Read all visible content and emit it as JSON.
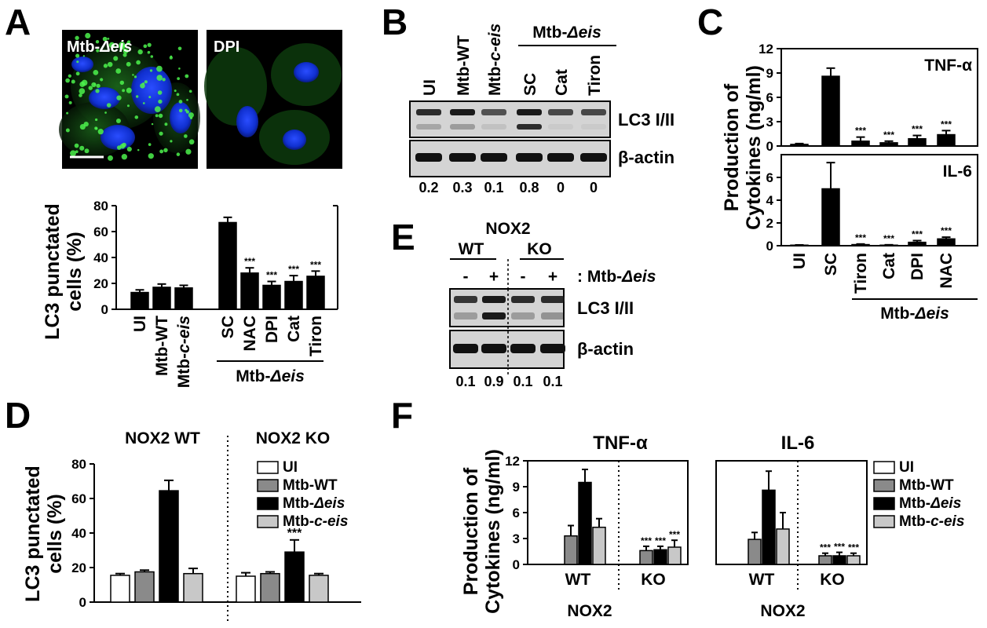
{
  "panels": {
    "A": {
      "label": "A",
      "images": [
        {
          "label_prefix": "Mtb-",
          "label_em": "Δeis"
        },
        {
          "label_prefix": "DPI",
          "label_em": ""
        }
      ],
      "ylabel_line1": "LC3 punctated",
      "ylabel_line2": "cells (%)",
      "group_label_prefix": "Mtb-",
      "group_label_em": "Δeis"
    },
    "B": {
      "label": "B",
      "group_label_prefix": "Mtb-",
      "group_label_em": "Δeis",
      "lanes": [
        "UI",
        "Mtb-WT",
        "Mtb-c-eis",
        "SC",
        "Cat",
        "Tiron"
      ],
      "rows": [
        "LC3 I/II",
        "β-actin"
      ],
      "quant": [
        "0.2",
        "0.3",
        "0.1",
        "0.8",
        "0",
        "0"
      ]
    },
    "C": {
      "label": "C",
      "ylabel_line1": "Production of",
      "ylabel_line2": "Cytokines (ng/ml)",
      "group_label_prefix": "Mtb-",
      "group_label_em": "Δeis"
    },
    "D": {
      "label": "D",
      "ylabel_line1": "LC3 punctated",
      "ylabel_line2": "cells (%)",
      "group_titles": [
        "NOX2 WT",
        "NOX2 KO"
      ]
    },
    "E": {
      "label": "E",
      "header": "NOX2",
      "groups": [
        "WT",
        "KO"
      ],
      "signs": [
        "-",
        "+",
        "-",
        "+"
      ],
      "treatment_prefix": ": Mtb-",
      "treatment_em": "Δeis",
      "rows": [
        "LC3 I/II",
        "β-actin"
      ],
      "quant": [
        "0.1",
        "0.9",
        "0.1",
        "0.1"
      ]
    },
    "F": {
      "label": "F",
      "ylabel_line1": "Production of",
      "ylabel_line2": "Cytokines (ng/ml)",
      "xgroup_label": "NOX2"
    }
  },
  "legend": [
    {
      "prefix": "UI",
      "em": "",
      "suffix": "",
      "color": "#ffffff"
    },
    {
      "prefix": "Mtb-WT",
      "em": "",
      "suffix": "",
      "color": "#8a8a8a"
    },
    {
      "prefix": "Mtb-",
      "em": "Δeis",
      "suffix": "",
      "color": "#000000"
    },
    {
      "prefix": "Mtb-",
      "em": "c-eis",
      "suffix": "",
      "color": "#c8c8c8"
    }
  ],
  "chart_data": [
    {
      "panel": "A",
      "type": "bar",
      "categories": [
        "UI",
        "Mtb-WT",
        "Mtb-c-eis",
        "SC",
        "NAC",
        "DPI",
        "Cat",
        "Tiron"
      ],
      "values": [
        13,
        17,
        16.5,
        67,
        28,
        18.5,
        21.5,
        25.5
      ],
      "errors": [
        2,
        2.5,
        2,
        4,
        4,
        3,
        4.5,
        4
      ],
      "significance": [
        "",
        "",
        "",
        "",
        "***",
        "***",
        "***",
        "***"
      ],
      "ylim": [
        0,
        80
      ],
      "yticks": [
        0,
        20,
        40,
        60,
        80
      ]
    },
    {
      "panel": "C",
      "type": "bar",
      "categories": [
        "UI",
        "SC",
        "Tiron",
        "Cat",
        "DPI",
        "NAC"
      ],
      "series": [
        {
          "name": "TNF-α",
          "values": [
            0.2,
            8.6,
            0.6,
            0.4,
            0.9,
            1.4
          ],
          "errors": [
            0.1,
            1.0,
            0.5,
            0.2,
            0.4,
            0.5
          ],
          "significance": [
            "",
            "",
            "***",
            "***",
            "***",
            "***"
          ],
          "ylim": [
            0,
            12
          ],
          "yticks": [
            0,
            3,
            6,
            9,
            12
          ]
        },
        {
          "name": "IL-6",
          "values": [
            0.05,
            5.0,
            0.1,
            0.05,
            0.3,
            0.6
          ],
          "errors": [
            0.02,
            2.3,
            0.05,
            0.03,
            0.15,
            0.15
          ],
          "significance": [
            "",
            "",
            "***",
            "***",
            "***",
            "***"
          ],
          "ylim": [
            0,
            8
          ],
          "yticks": [
            0,
            2,
            4,
            6
          ]
        }
      ]
    },
    {
      "panel": "D",
      "type": "bar",
      "categories": [
        "NOX2 WT",
        "NOX2 KO"
      ],
      "series": [
        {
          "name": "UI",
          "values": [
            15.5,
            15
          ],
          "errors": [
            1,
            2
          ]
        },
        {
          "name": "Mtb-WT",
          "values": [
            17.5,
            16.5
          ],
          "errors": [
            1,
            1
          ]
        },
        {
          "name": "Mtb-Δeis",
          "values": [
            64.5,
            29
          ],
          "errors": [
            6,
            7
          ]
        },
        {
          "name": "Mtb-c-eis",
          "values": [
            16.5,
            15.5
          ],
          "errors": [
            3,
            1
          ]
        }
      ],
      "significance": {
        "NOX2 KO": {
          "Mtb-Δeis": "***"
        }
      },
      "ylim": [
        0,
        80
      ],
      "yticks": [
        0,
        20,
        40,
        60,
        80
      ]
    },
    {
      "panel": "F",
      "type": "bar",
      "subplots": [
        {
          "title": "TNF-α",
          "categories": [
            "WT",
            "KO"
          ],
          "series": [
            {
              "name": "UI",
              "values": [
                0,
                0
              ],
              "errors": [
                0,
                0
              ]
            },
            {
              "name": "Mtb-WT",
              "values": [
                3.3,
                1.6
              ],
              "errors": [
                1.2,
                0.5
              ]
            },
            {
              "name": "Mtb-Δeis",
              "values": [
                9.5,
                1.7
              ],
              "errors": [
                1.5,
                0.4
              ]
            },
            {
              "name": "Mtb-c-eis",
              "values": [
                4.3,
                2.0
              ],
              "errors": [
                1.0,
                0.8
              ]
            }
          ],
          "significance": [
            "***",
            "***",
            "***"
          ],
          "ylim": [
            0,
            12
          ],
          "yticks": [
            0,
            3,
            6,
            9,
            12
          ]
        },
        {
          "title": "IL-6",
          "categories": [
            "WT",
            "KO"
          ],
          "series": [
            {
              "name": "UI",
              "values": [
                0,
                0
              ],
              "errors": [
                0,
                0
              ]
            },
            {
              "name": "Mtb-WT",
              "values": [
                2.9,
                1.0
              ],
              "errors": [
                0.8,
                0.3
              ]
            },
            {
              "name": "Mtb-Δeis",
              "values": [
                8.6,
                1.0
              ],
              "errors": [
                2.2,
                0.4
              ]
            },
            {
              "name": "Mtb-c-eis",
              "values": [
                4.1,
                1.0
              ],
              "errors": [
                1.9,
                0.3
              ]
            }
          ],
          "significance": [
            "***",
            "***",
            "***"
          ],
          "ylim": [
            0,
            12
          ],
          "yticks": [
            0,
            3,
            6,
            9,
            12
          ]
        }
      ]
    }
  ]
}
